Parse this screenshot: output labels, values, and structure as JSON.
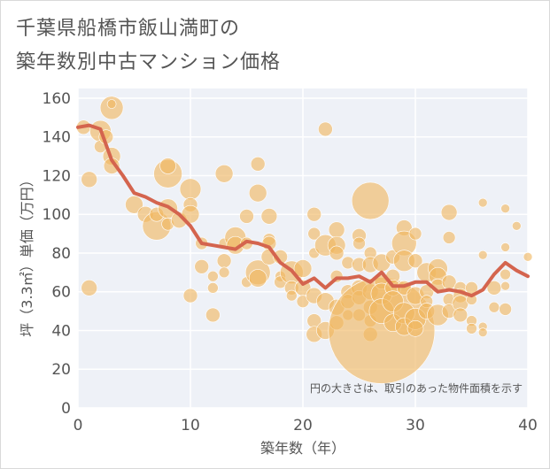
{
  "title_line1": "千葉県船橋市飯山満町の",
  "title_line2": "築年数別中古マンション価格",
  "chart_data": {
    "type": "scatter",
    "xlabel": "築年数（年）",
    "ylabel": "坪（3.3㎡）単価（万円）",
    "xlim": [
      0,
      40
    ],
    "ylim": [
      0,
      165
    ],
    "xticks": [
      "0",
      "10",
      "20",
      "30",
      "40"
    ],
    "yticks": [
      "0",
      "20",
      "40",
      "60",
      "80",
      "100",
      "120",
      "140",
      "160"
    ],
    "xtick_values": [
      0,
      10,
      20,
      30,
      40
    ],
    "ytick_values": [
      0,
      20,
      40,
      60,
      80,
      100,
      120,
      140,
      160
    ],
    "grid": true,
    "annotation": "円の大きさは、取引のあった物件面積を示す",
    "bubble_color": "#f0b660",
    "line_color": "#d4644e",
    "bubbles": [
      [
        0.5,
        145,
        8
      ],
      [
        1,
        118,
        9
      ],
      [
        1,
        62,
        9
      ],
      [
        2,
        143,
        12
      ],
      [
        2,
        135,
        7
      ],
      [
        2.5,
        140,
        8
      ],
      [
        3,
        155,
        13
      ],
      [
        3,
        157,
        5
      ],
      [
        3,
        130,
        10
      ],
      [
        3,
        125,
        9
      ],
      [
        5,
        105,
        10
      ],
      [
        6,
        100,
        9
      ],
      [
        7,
        94,
        16
      ],
      [
        7,
        100,
        8
      ],
      [
        8,
        121,
        16
      ],
      [
        8,
        125,
        9
      ],
      [
        8,
        103,
        11
      ],
      [
        8,
        95,
        7
      ],
      [
        9,
        97,
        9
      ],
      [
        10,
        113,
        12
      ],
      [
        10,
        105,
        8
      ],
      [
        10,
        100,
        10
      ],
      [
        10,
        58,
        8
      ],
      [
        11,
        85,
        7
      ],
      [
        11,
        73,
        8
      ],
      [
        12,
        68,
        6
      ],
      [
        12,
        62,
        6
      ],
      [
        12,
        48,
        8
      ],
      [
        13,
        121,
        10
      ],
      [
        13,
        76,
        8
      ],
      [
        13,
        70,
        6
      ],
      [
        13,
        85,
        6
      ],
      [
        14,
        88,
        12
      ],
      [
        14,
        84,
        10
      ],
      [
        15,
        99,
        8
      ],
      [
        15,
        85,
        7
      ],
      [
        15,
        65,
        6
      ],
      [
        16,
        126,
        8
      ],
      [
        16,
        111,
        10
      ],
      [
        16,
        70,
        14
      ],
      [
        16,
        67,
        10
      ],
      [
        17,
        99,
        9
      ],
      [
        17,
        87,
        7
      ],
      [
        17,
        85,
        8
      ],
      [
        17,
        78,
        9
      ],
      [
        18,
        78,
        8
      ],
      [
        18,
        68,
        6
      ],
      [
        18,
        65,
        7
      ],
      [
        19,
        70,
        13
      ],
      [
        19,
        62,
        8
      ],
      [
        19,
        58,
        6
      ],
      [
        20,
        72,
        10
      ],
      [
        20,
        62,
        9
      ],
      [
        20,
        55,
        7
      ],
      [
        21,
        100,
        8
      ],
      [
        21,
        90,
        7
      ],
      [
        21,
        80,
        6
      ],
      [
        21,
        58,
        9
      ],
      [
        21,
        45,
        8
      ],
      [
        21,
        38,
        9
      ],
      [
        22,
        144,
        8
      ],
      [
        22,
        84,
        12
      ],
      [
        22,
        55,
        10
      ],
      [
        22,
        40,
        10
      ],
      [
        23,
        92,
        9
      ],
      [
        23,
        84,
        10
      ],
      [
        23,
        80,
        8
      ],
      [
        23,
        68,
        7
      ],
      [
        23,
        52,
        9
      ],
      [
        23,
        44,
        8
      ],
      [
        24,
        75,
        7
      ],
      [
        24,
        60,
        8
      ],
      [
        24,
        55,
        8
      ],
      [
        24,
        48,
        6
      ],
      [
        25,
        89,
        8
      ],
      [
        25,
        85,
        7
      ],
      [
        25,
        74,
        8
      ],
      [
        25,
        62,
        9
      ],
      [
        25,
        57,
        8
      ],
      [
        25,
        48,
        7
      ],
      [
        26,
        107,
        21
      ],
      [
        26,
        80,
        7
      ],
      [
        26,
        74,
        9
      ],
      [
        26,
        60,
        9
      ],
      [
        26,
        52,
        8
      ],
      [
        26,
        45,
        7
      ],
      [
        26,
        38,
        8
      ],
      [
        27,
        40,
        60
      ],
      [
        27,
        75,
        10
      ],
      [
        27,
        65,
        8
      ],
      [
        27,
        59,
        12
      ],
      [
        27,
        50,
        14
      ],
      [
        28,
        78,
        8
      ],
      [
        28,
        68,
        8
      ],
      [
        28,
        62,
        9
      ],
      [
        28,
        55,
        12
      ],
      [
        28,
        44,
        10
      ],
      [
        29,
        93,
        9
      ],
      [
        29,
        85,
        14
      ],
      [
        29,
        76,
        12
      ],
      [
        29,
        62,
        8
      ],
      [
        29,
        49,
        12
      ],
      [
        29,
        42,
        10
      ],
      [
        30,
        90,
        7
      ],
      [
        30,
        76,
        8
      ],
      [
        30,
        58,
        10
      ],
      [
        30,
        46,
        12
      ],
      [
        30,
        41,
        9
      ],
      [
        31,
        70,
        11
      ],
      [
        31,
        60,
        8
      ],
      [
        31,
        55,
        7
      ],
      [
        31,
        50,
        9
      ],
      [
        32,
        72,
        11
      ],
      [
        32,
        68,
        10
      ],
      [
        32,
        63,
        8
      ],
      [
        32,
        48,
        12
      ],
      [
        33,
        101,
        9
      ],
      [
        33,
        88,
        7
      ],
      [
        33,
        65,
        8
      ],
      [
        33,
        56,
        7
      ],
      [
        33,
        50,
        8
      ],
      [
        34,
        62,
        7
      ],
      [
        34,
        58,
        8
      ],
      [
        34,
        54,
        9
      ],
      [
        34,
        48,
        8
      ],
      [
        35,
        62,
        7
      ],
      [
        35,
        56,
        6
      ],
      [
        35,
        45,
        6
      ],
      [
        35,
        41,
        6
      ],
      [
        36,
        106,
        5
      ],
      [
        36,
        79,
        5
      ],
      [
        36,
        42,
        5
      ],
      [
        36,
        39,
        5
      ],
      [
        37,
        62,
        8
      ],
      [
        37,
        52,
        6
      ],
      [
        38,
        103,
        5
      ],
      [
        38,
        83,
        5
      ],
      [
        38,
        69,
        6
      ],
      [
        38,
        63,
        5
      ],
      [
        38,
        51,
        7
      ],
      [
        39,
        94,
        5
      ],
      [
        40,
        78,
        5
      ]
    ],
    "trend": [
      [
        0,
        145
      ],
      [
        1,
        146
      ],
      [
        2,
        144
      ],
      [
        3,
        128
      ],
      [
        4,
        120
      ],
      [
        5,
        111
      ],
      [
        6,
        109
      ],
      [
        7,
        106
      ],
      [
        8,
        104
      ],
      [
        9,
        100
      ],
      [
        10,
        94
      ],
      [
        11,
        85
      ],
      [
        12,
        84
      ],
      [
        13,
        83
      ],
      [
        14,
        82
      ],
      [
        15,
        86
      ],
      [
        16,
        85
      ],
      [
        17,
        83
      ],
      [
        18,
        75
      ],
      [
        19,
        71
      ],
      [
        20,
        64
      ],
      [
        21,
        67
      ],
      [
        22,
        62
      ],
      [
        23,
        67
      ],
      [
        24,
        67
      ],
      [
        25,
        68
      ],
      [
        26,
        65
      ],
      [
        27,
        70
      ],
      [
        28,
        63
      ],
      [
        29,
        63
      ],
      [
        30,
        65
      ],
      [
        31,
        65
      ],
      [
        32,
        60
      ],
      [
        33,
        61
      ],
      [
        34,
        60
      ],
      [
        35,
        58
      ],
      [
        36,
        61
      ],
      [
        37,
        69
      ],
      [
        38,
        75
      ],
      [
        39,
        71
      ],
      [
        40,
        68
      ]
    ]
  }
}
